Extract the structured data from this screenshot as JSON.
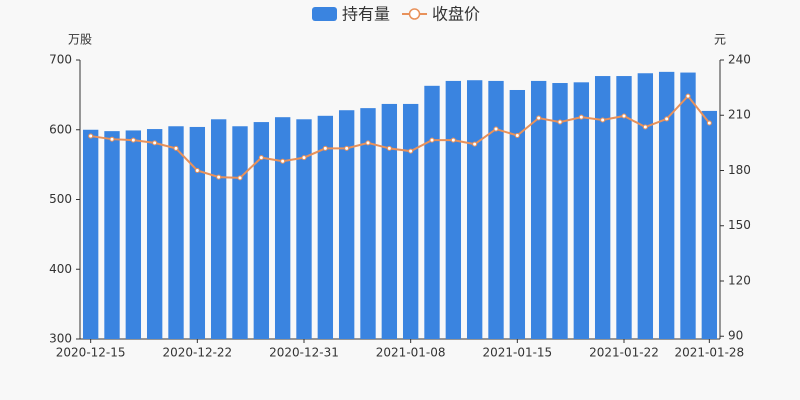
{
  "chart_data": {
    "type": "bar-line",
    "legend_position": "top",
    "y_unit": "万股",
    "y2_unit": "元",
    "categories": [
      "2020-12-15",
      null,
      null,
      null,
      null,
      "2020-12-22",
      null,
      null,
      null,
      null,
      "2020-12-31",
      null,
      null,
      null,
      null,
      "2021-01-08",
      null,
      null,
      null,
      null,
      "2021-01-15",
      null,
      null,
      null,
      null,
      "2021-01-22",
      null,
      null,
      null,
      "2021-01-28"
    ],
    "series": [
      {
        "name": "持有量",
        "type": "bar",
        "color": "#3a84e0",
        "values": [
          600,
          598,
          599,
          601,
          605,
          604,
          615,
          605,
          611,
          618,
          615,
          620,
          628,
          631,
          637,
          637,
          663,
          670,
          671,
          670,
          657,
          670,
          667,
          668,
          677,
          677,
          681,
          683,
          682,
          627
        ]
      },
      {
        "name": "收盘价",
        "type": "line",
        "axis": "y2",
        "color": "#e8915a",
        "values": [
          198.7,
          197,
          196.5,
          195,
          192,
          180,
          176.4,
          176,
          187,
          185,
          187,
          192,
          192,
          195,
          192,
          190.5,
          196.5,
          196.5,
          194.3,
          202.5,
          199,
          208.5,
          206.3,
          209,
          207.4,
          209.6,
          203.6,
          208,
          220.4,
          205.8
        ]
      }
    ],
    "ylim": [
      300,
      700
    ],
    "yticks": [
      300,
      400,
      500,
      600,
      700
    ],
    "y2lim": [
      88.5,
      240
    ],
    "y2ticks": [
      90,
      120,
      150,
      180,
      210,
      240
    ]
  }
}
